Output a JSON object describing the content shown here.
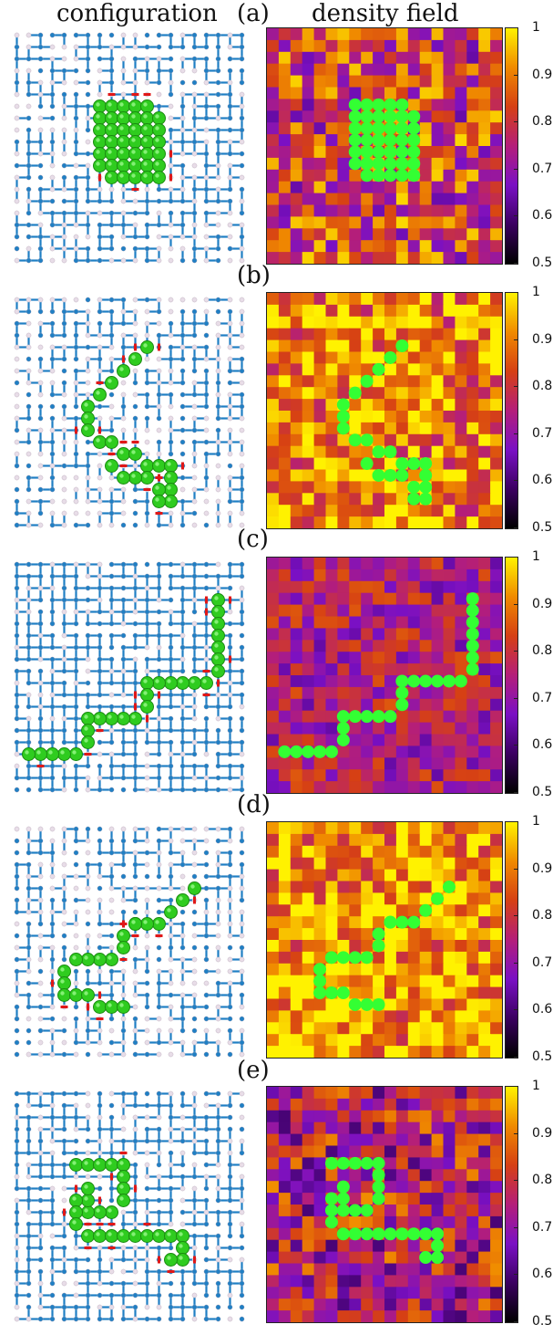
{
  "headers": {
    "left": "configuration",
    "right": "density field"
  },
  "panels": [
    {
      "label": "(a)",
      "shape": "cluster"
    },
    {
      "label": "(b)",
      "shape": "chain"
    },
    {
      "label": "(c)",
      "shape": "chain"
    },
    {
      "label": "(d)",
      "shape": "chain"
    },
    {
      "label": "(e)",
      "shape": "chain"
    }
  ],
  "colorbar": {
    "ticks": [
      "1",
      "0.9",
      "0.8",
      "0.7",
      "0.6",
      "0.5"
    ],
    "min": 0.5,
    "max": 1.0,
    "colormap": [
      "#000000",
      "#3b0060",
      "#7a10c4",
      "#b41e7a",
      "#d64014",
      "#f08a00",
      "#fff200"
    ]
  },
  "colors": {
    "bond": "#1f7fc4",
    "site": "#e8dde8",
    "particle": "#2fcc1f",
    "particle_dark": "#1a8a10",
    "highlight": "#e01818",
    "field_particle": "#33ff33"
  }
}
